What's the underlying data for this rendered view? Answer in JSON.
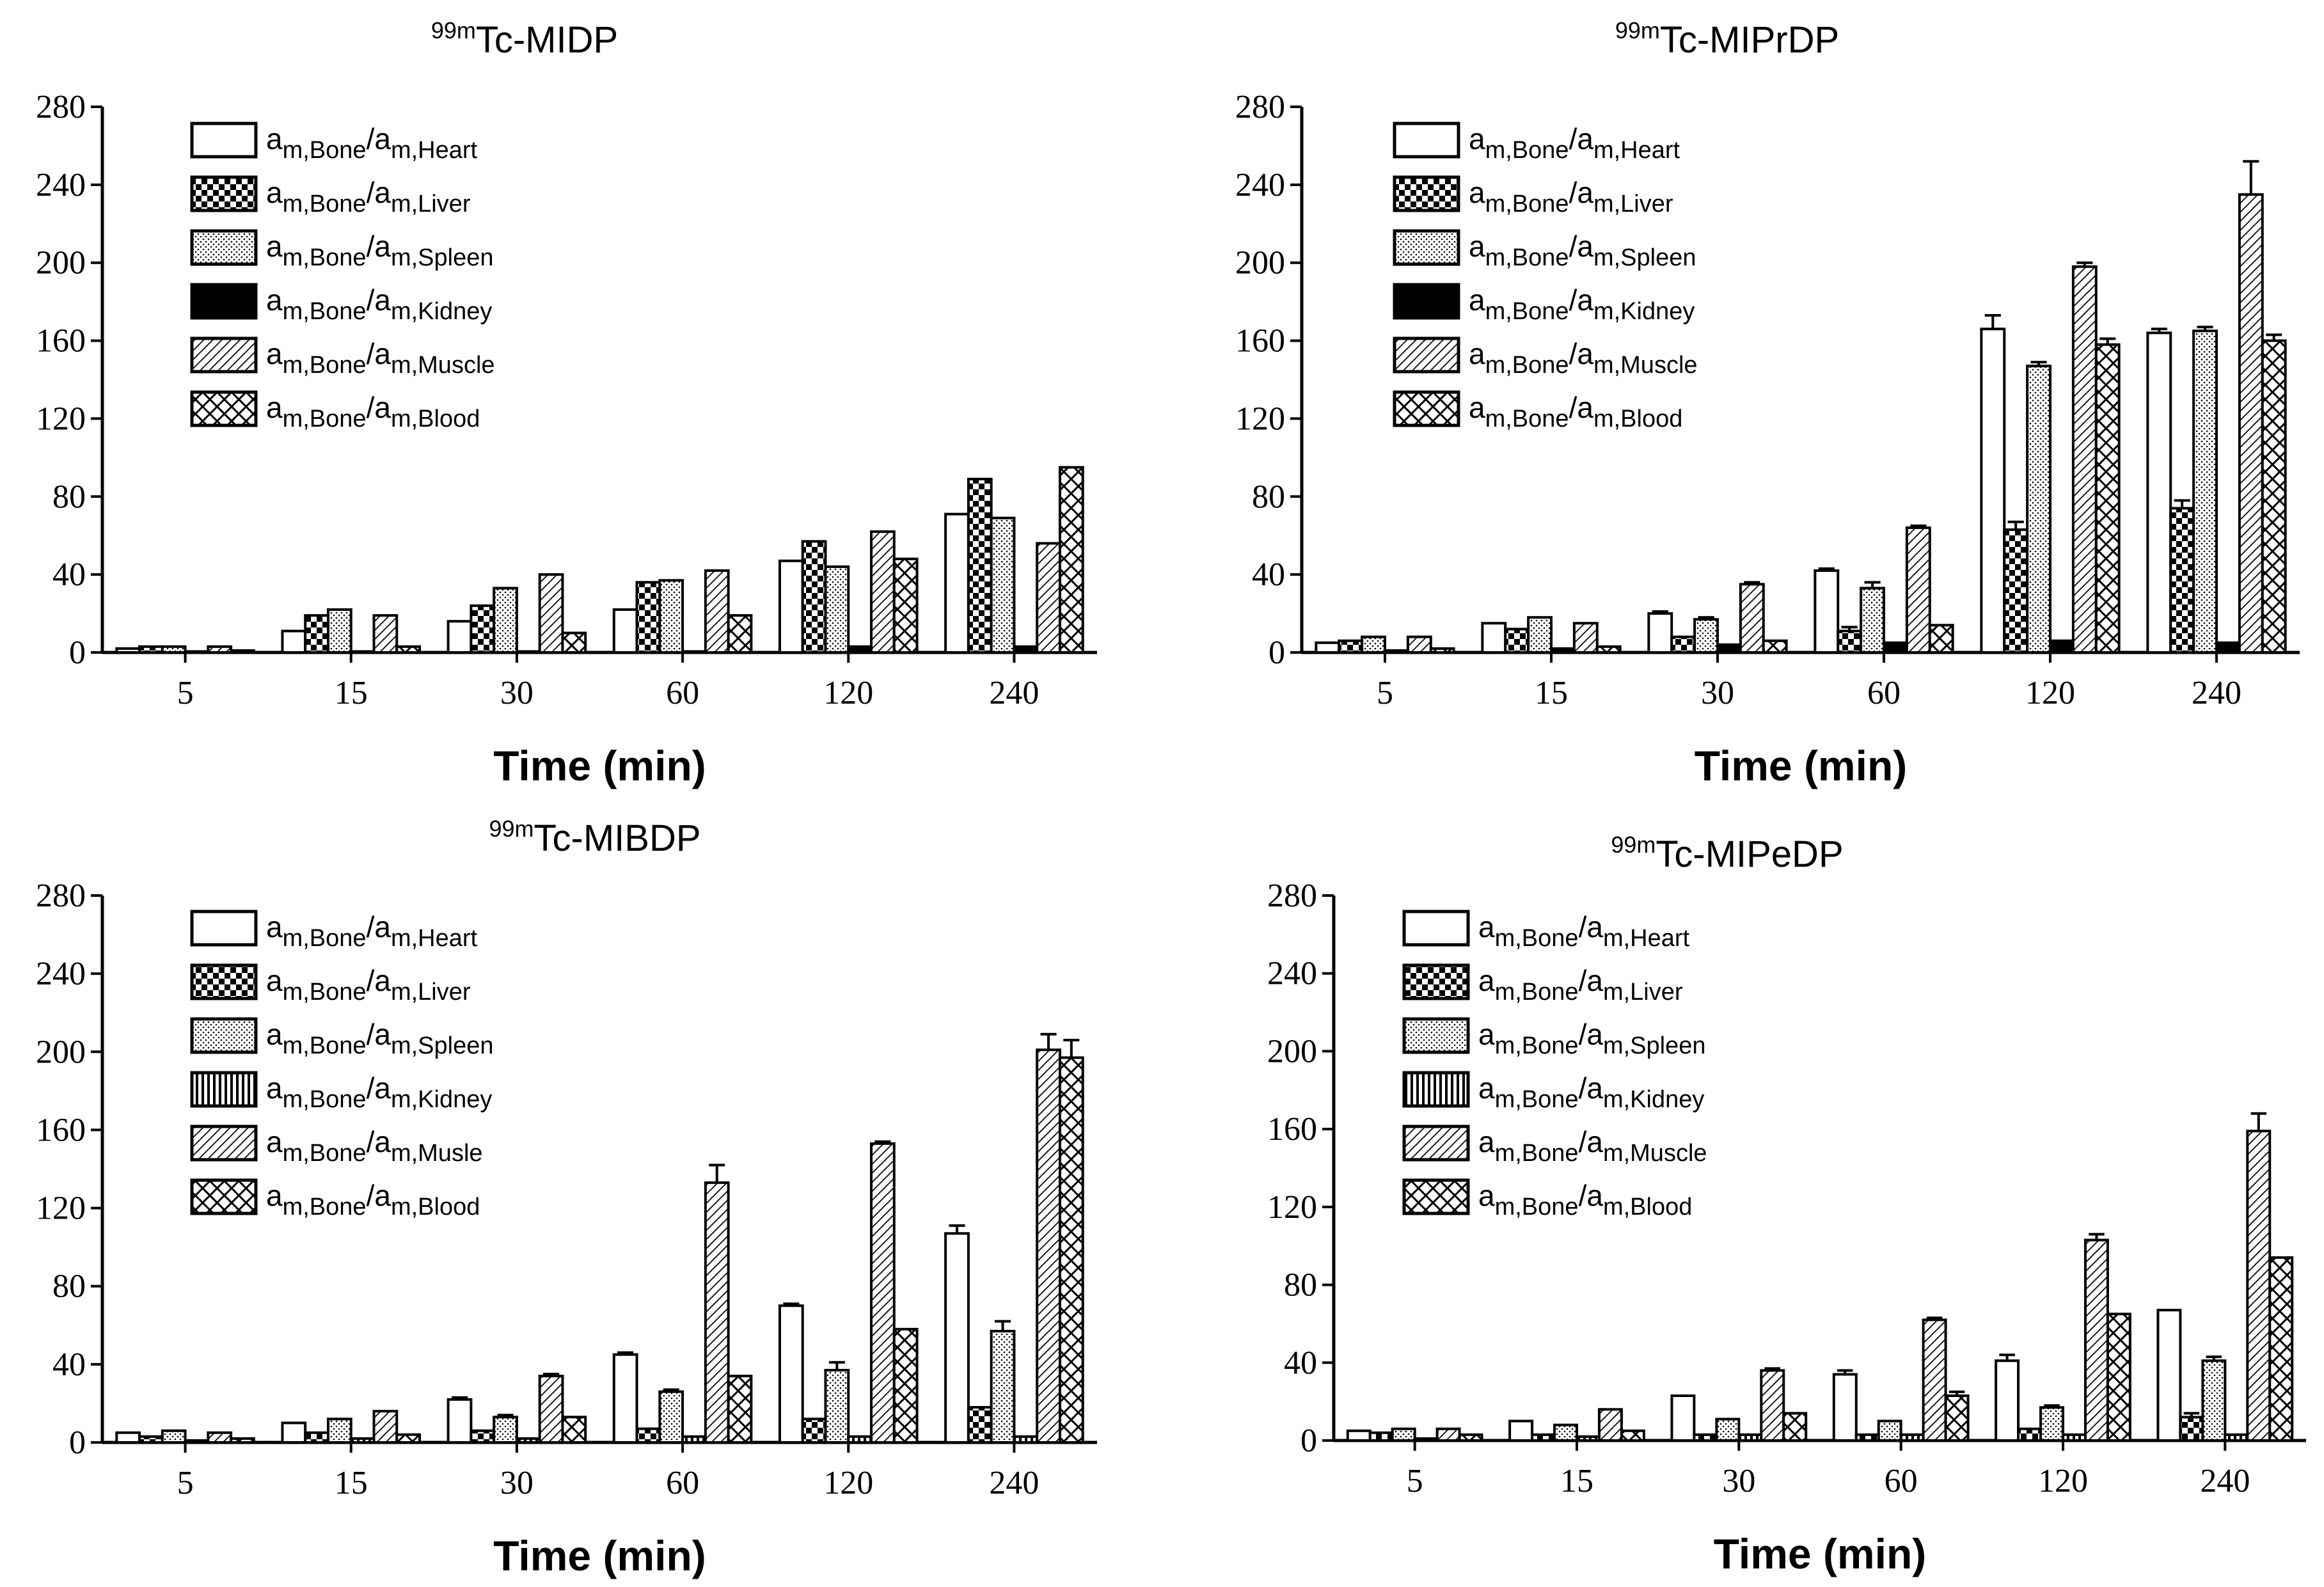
{
  "chart_data": [
    {
      "type": "bar",
      "title_sup": "99m",
      "title": "Tc-MIDP",
      "xlabel": "Time (min)",
      "ylabel": "",
      "ylim": [
        0,
        280
      ],
      "yticks": [
        0,
        40,
        80,
        120,
        160,
        200,
        240,
        280
      ],
      "categories": [
        "5",
        "15",
        "30",
        "60",
        "120",
        "240"
      ],
      "legend_position": "top-left",
      "series": [
        {
          "name": "a_m,Bone/a_m,Heart",
          "organ": "Heart",
          "pattern": "white",
          "values": [
            2,
            11,
            16,
            22,
            47,
            71
          ],
          "errors": [
            0,
            0,
            0,
            0,
            0,
            0
          ]
        },
        {
          "name": "a_m,Bone/a_m,Liver",
          "organ": "Liver",
          "pattern": "checker",
          "values": [
            3,
            19,
            24,
            36,
            57,
            89
          ],
          "errors": [
            0,
            0,
            0,
            0,
            0,
            0
          ]
        },
        {
          "name": "a_m,Bone/a_m,Spleen",
          "organ": "Spleen",
          "pattern": "dots",
          "values": [
            3,
            22,
            33,
            37,
            44,
            69
          ],
          "errors": [
            0,
            0,
            0,
            0,
            0,
            0
          ]
        },
        {
          "name": "a_m,Bone/a_m,Kidney",
          "organ": "Kidney",
          "pattern": "solid",
          "values": [
            0.5,
            0.5,
            0.5,
            0.5,
            3,
            3
          ],
          "errors": [
            0,
            0,
            0,
            0,
            0,
            0
          ]
        },
        {
          "name": "a_m,Bone/a_m,Muscle",
          "organ": "Muscle",
          "pattern": "diagonal",
          "values": [
            3,
            19,
            40,
            42,
            62,
            56
          ],
          "errors": [
            0,
            0,
            0,
            0,
            0,
            0
          ]
        },
        {
          "name": "a_m,Bone/a_m,Blood",
          "organ": "Blood",
          "pattern": "crosshatch",
          "values": [
            1,
            3,
            10,
            19,
            48,
            95
          ],
          "errors": [
            0,
            0,
            0,
            0,
            0,
            0
          ]
        }
      ]
    },
    {
      "type": "bar",
      "title_sup": "99m",
      "title": "Tc-MIPrDP",
      "xlabel": "Time (min)",
      "ylabel": "",
      "ylim": [
        0,
        280
      ],
      "yticks": [
        0,
        40,
        80,
        120,
        160,
        200,
        240,
        280
      ],
      "categories": [
        "5",
        "15",
        "30",
        "60",
        "120",
        "240"
      ],
      "legend_position": "top-left",
      "series": [
        {
          "name": "a_m,Bone/a_m,Heart",
          "organ": "Heart",
          "pattern": "white",
          "values": [
            5,
            15,
            20,
            42,
            166,
            164
          ],
          "errors": [
            0,
            0,
            1,
            1,
            7,
            2
          ]
        },
        {
          "name": "a_m,Bone/a_m,Liver",
          "organ": "Liver",
          "pattern": "checker",
          "values": [
            6,
            12,
            8,
            11,
            63,
            74
          ],
          "errors": [
            0,
            0,
            0,
            2,
            4,
            4
          ]
        },
        {
          "name": "a_m,Bone/a_m,Spleen",
          "organ": "Spleen",
          "pattern": "dots",
          "values": [
            8,
            18,
            17,
            33,
            147,
            165
          ],
          "errors": [
            0,
            0,
            1,
            3,
            2,
            2
          ]
        },
        {
          "name": "a_m,Bone/a_m,Kidney",
          "organ": "Kidney",
          "pattern": "solid",
          "values": [
            1,
            2,
            4,
            5,
            6,
            5
          ],
          "errors": [
            0,
            0,
            0,
            0,
            0,
            0
          ]
        },
        {
          "name": "a_m,Bone/a_m,Muscle",
          "organ": "Muscle",
          "pattern": "diagonal",
          "values": [
            8,
            15,
            35,
            64,
            198,
            235
          ],
          "errors": [
            0,
            0,
            1,
            1,
            2,
            17
          ]
        },
        {
          "name": "a_m,Bone/a_m,Blood",
          "organ": "Blood",
          "pattern": "crosshatch",
          "values": [
            2,
            3,
            6,
            14,
            158,
            160
          ],
          "errors": [
            0,
            0,
            0,
            0,
            3,
            3
          ]
        }
      ]
    },
    {
      "type": "bar",
      "title_sup": "99m",
      "title": "Tc-MIBDP",
      "xlabel": "Time (min)",
      "ylabel": "",
      "ylim": [
        0,
        280
      ],
      "yticks": [
        0,
        40,
        80,
        120,
        160,
        200,
        240,
        280
      ],
      "categories": [
        "5",
        "15",
        "30",
        "60",
        "120",
        "240"
      ],
      "legend_position": "top-left",
      "series": [
        {
          "name": "a_m,Bone/a_m,Heart",
          "organ": "Heart",
          "pattern": "white",
          "values": [
            5,
            10,
            22,
            45,
            70,
            107
          ],
          "errors": [
            0,
            0,
            1,
            1,
            1,
            4
          ]
        },
        {
          "name": "a_m,Bone/a_m,Liver",
          "organ": "Liver",
          "pattern": "checker",
          "values": [
            3,
            5,
            6,
            7,
            12,
            18
          ],
          "errors": [
            0,
            0,
            0,
            0,
            0,
            0
          ]
        },
        {
          "name": "a_m,Bone/a_m,Spleen",
          "organ": "Spleen",
          "pattern": "dots",
          "values": [
            6,
            12,
            13,
            26,
            37,
            57
          ],
          "errors": [
            0,
            0,
            1,
            1,
            4,
            5
          ]
        },
        {
          "name": "a_m,Bone/a_m,Kidney",
          "organ": "Kidney",
          "pattern": "vertical",
          "values": [
            1,
            2,
            2,
            3,
            3,
            3
          ],
          "errors": [
            0,
            0,
            0,
            0,
            0,
            0
          ]
        },
        {
          "name": "a_m,Bone/a_m,Musle",
          "organ": "Musle",
          "pattern": "diagonal",
          "values": [
            5,
            16,
            34,
            133,
            153,
            201
          ],
          "errors": [
            0,
            0,
            1,
            9,
            1,
            8
          ]
        },
        {
          "name": "a_m,Bone/a_m,Blood",
          "organ": "Blood",
          "pattern": "crosshatch",
          "values": [
            2,
            4,
            13,
            34,
            58,
            197
          ],
          "errors": [
            0,
            0,
            0,
            0,
            0,
            9
          ]
        }
      ]
    },
    {
      "type": "bar",
      "title_sup": "99m",
      "title": "Tc-MIPeDP",
      "xlabel": "Time (min)",
      "ylabel": "",
      "ylim": [
        0,
        280
      ],
      "yticks": [
        0,
        40,
        80,
        120,
        160,
        200,
        240,
        280
      ],
      "categories": [
        "5",
        "15",
        "30",
        "60",
        "120",
        "240"
      ],
      "legend_position": "top-left",
      "series": [
        {
          "name": "a_m,Bone/a_m,Heart",
          "organ": "Heart",
          "pattern": "white",
          "values": [
            5,
            10,
            23,
            34,
            41,
            67
          ],
          "errors": [
            0,
            0,
            0,
            2,
            3,
            0
          ]
        },
        {
          "name": "a_m,Bone/a_m,Liver",
          "organ": "Liver",
          "pattern": "checker",
          "values": [
            4,
            3,
            3,
            3,
            6,
            12
          ],
          "errors": [
            0,
            0,
            0,
            0,
            0,
            2
          ]
        },
        {
          "name": "a_m,Bone/a_m,Spleen",
          "organ": "Spleen",
          "pattern": "dots",
          "values": [
            6,
            8,
            11,
            10,
            17,
            41
          ],
          "errors": [
            0,
            0,
            0,
            0,
            1,
            2
          ]
        },
        {
          "name": "a_m,Bone/a_m,Kidney",
          "organ": "Kidney",
          "pattern": "vertical",
          "values": [
            1,
            2,
            3,
            3,
            3,
            3
          ],
          "errors": [
            0,
            0,
            0,
            0,
            0,
            0
          ]
        },
        {
          "name": "a_m,Bone/a_m,Muscle",
          "organ": "Muscle",
          "pattern": "diagonal",
          "values": [
            6,
            16,
            36,
            62,
            103,
            159
          ],
          "errors": [
            0,
            0,
            1,
            1,
            3,
            9
          ]
        },
        {
          "name": "a_m,Bone/a_m,Blood",
          "organ": "Blood",
          "pattern": "crosshatch",
          "values": [
            3,
            5,
            14,
            23,
            65,
            94
          ],
          "errors": [
            0,
            0,
            0,
            2,
            0,
            0
          ]
        }
      ]
    }
  ]
}
